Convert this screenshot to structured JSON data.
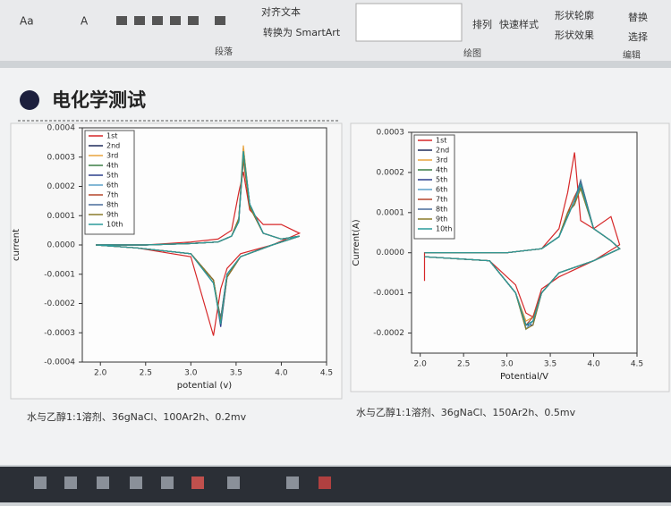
{
  "ribbon": {
    "font_size": "Aa",
    "font_color": "A",
    "align_text": "对齐文本",
    "convert_smartart": "转换为 SmartArt",
    "paragraph": "段落",
    "arrange": "排列",
    "quick_styles": "快速样式",
    "shape_outline": "形状轮廓",
    "shape_effects": "形状效果",
    "replace": "替换",
    "select": "选择",
    "drawing": "绘图",
    "editing": "编辑"
  },
  "slide": {
    "title": "电化学测试",
    "captions": [
      "水与乙醇1:1溶剂、36gNaCl、100Ar2h、0.2mv",
      "水与乙醇1:1溶剂、36gNaCl、150Ar2h、0.5mv"
    ]
  },
  "chart_data": [
    {
      "type": "line",
      "xlabel": "potential (v)",
      "ylabel": "current",
      "xlim": [
        1.8,
        4.5
      ],
      "ylim": [
        -0.0004,
        0.0004
      ],
      "xticks": [
        {
          "value": 2,
          "label": "2.0"
        },
        2.5,
        {
          "value": 3,
          "label": "3.0"
        },
        3.5,
        {
          "value": 4,
          "label": "4.0"
        },
        4.5
      ],
      "yticks": [
        -0.0004,
        -0.0003,
        -0.0002,
        -0.0001,
        {
          "value": 0,
          "label": "0.0000"
        },
        0.0001,
        0.0002,
        0.0003,
        0.0004
      ],
      "grid": false,
      "legend": "upper left",
      "x": [
        1.95,
        2.5,
        3.0,
        3.3,
        3.45,
        3.53,
        3.58,
        3.65,
        3.8,
        4.0,
        4.2,
        3.9,
        3.55,
        3.4,
        3.33,
        3.25,
        3.0,
        2.4,
        1.95
      ],
      "series": [
        {
          "name": "1st",
          "color": "#d62728",
          "values": [
            0,
            0,
            1e-05,
            2e-05,
            5e-05,
            0.00018,
            0.00025,
            0.00012,
            7e-05,
            7e-05,
            4e-05,
            0,
            -3e-05,
            -8e-05,
            -0.00015,
            -0.00031,
            -4e-05,
            -1e-05,
            0
          ]
        },
        {
          "name": "2nd",
          "color": "#1f2a5a",
          "values": [
            0,
            0,
            5e-06,
            1e-05,
            3e-05,
            8e-05,
            0.00033,
            0.00014,
            4e-05,
            2e-05,
            3e-05,
            0,
            -4e-05,
            -0.0001,
            -0.00026,
            -0.00012,
            -3e-05,
            -1e-05,
            0
          ]
        },
        {
          "name": "3rd",
          "color": "#e8a33d",
          "values": [
            0,
            0,
            5e-06,
            1e-05,
            3e-05,
            9e-05,
            0.00034,
            0.00013,
            4e-05,
            2e-05,
            3e-05,
            0,
            -4e-05,
            -0.00011,
            -0.00027,
            -0.00012,
            -3e-05,
            -1e-05,
            0
          ]
        },
        {
          "name": "4th",
          "color": "#3a7d44",
          "values": [
            0,
            0,
            5e-06,
            1e-05,
            3e-05,
            8e-05,
            0.00032,
            0.00014,
            4e-05,
            2e-05,
            3e-05,
            0,
            -4e-05,
            -0.0001,
            -0.00025,
            -0.00013,
            -3e-05,
            -1e-05,
            0
          ]
        },
        {
          "name": "5th",
          "color": "#2b3f8c",
          "values": [
            0,
            0,
            5e-06,
            1e-05,
            3e-05,
            9e-05,
            0.00031,
            0.00013,
            4e-05,
            2e-05,
            3e-05,
            0,
            -4e-05,
            -0.00011,
            -0.00028,
            -0.00012,
            -3e-05,
            -1e-05,
            0
          ]
        },
        {
          "name": "6th",
          "color": "#5aa0c8",
          "values": [
            0,
            0,
            5e-06,
            1e-05,
            3e-05,
            8e-05,
            0.0003,
            0.00014,
            4e-05,
            2e-05,
            3e-05,
            0,
            -4e-05,
            -0.0001,
            -0.00026,
            -0.00013,
            -3e-05,
            -1e-05,
            0
          ]
        },
        {
          "name": "7th",
          "color": "#b5452b",
          "values": [
            0,
            0,
            5e-06,
            1e-05,
            3e-05,
            9e-05,
            0.00029,
            0.00013,
            4e-05,
            2e-05,
            3e-05,
            0,
            -4e-05,
            -0.00011,
            -0.00027,
            -0.00012,
            -3e-05,
            -1e-05,
            0
          ]
        },
        {
          "name": "8th",
          "color": "#486a9a",
          "values": [
            0,
            0,
            5e-06,
            1e-05,
            3e-05,
            8e-05,
            0.00031,
            0.00014,
            4e-05,
            2e-05,
            3e-05,
            0,
            -4e-05,
            -0.0001,
            -0.00025,
            -0.00013,
            -3e-05,
            -1e-05,
            0
          ]
        },
        {
          "name": "9th",
          "color": "#8a7a2a",
          "values": [
            0,
            0,
            5e-06,
            1e-05,
            3e-05,
            9e-05,
            0.0003,
            0.00013,
            4e-05,
            2e-05,
            3e-05,
            0,
            -4e-05,
            -0.00011,
            -0.00026,
            -0.00012,
            -3e-05,
            -1e-05,
            0
          ]
        },
        {
          "name": "10th",
          "color": "#2a9a9a",
          "values": [
            0,
            0,
            5e-06,
            1e-05,
            3e-05,
            8e-05,
            0.00032,
            0.00014,
            4e-05,
            2e-05,
            3e-05,
            0,
            -4e-05,
            -0.0001,
            -0.00027,
            -0.00013,
            -3e-05,
            -1e-05,
            0
          ]
        }
      ]
    },
    {
      "type": "line",
      "xlabel": "Potential/V",
      "ylabel": "Current(A)",
      "xlim": [
        1.9,
        4.5
      ],
      "ylim": [
        -0.00025,
        0.0003
      ],
      "xticks": [
        {
          "value": 2,
          "label": "2.0"
        },
        2.5,
        {
          "value": 3,
          "label": "3.0"
        },
        3.5,
        {
          "value": 4,
          "label": "4.0"
        },
        4.5
      ],
      "yticks": [
        -0.0002,
        -0.0001,
        {
          "value": 0,
          "label": "0.0000"
        },
        0.0001,
        0.0002,
        0.0003
      ],
      "grid": false,
      "legend": "upper left",
      "x": [
        2.05,
        2.05,
        3.0,
        3.4,
        3.6,
        3.7,
        3.78,
        3.85,
        4.0,
        4.2,
        4.3,
        4.0,
        3.6,
        3.4,
        3.3,
        3.22,
        3.1,
        2.8,
        2.05
      ],
      "series": [
        {
          "name": "1st",
          "color": "#d62728",
          "values": [
            -7e-05,
            0,
            0,
            1e-05,
            6e-05,
            0.00015,
            0.00025,
            8e-05,
            6e-05,
            9e-05,
            2e-05,
            -2e-05,
            -6e-05,
            -9e-05,
            -0.00016,
            -0.00015,
            -8e-05,
            -2e-05,
            -1e-05
          ]
        },
        {
          "name": "2nd",
          "color": "#1f2a5a",
          "values": [
            0,
            0,
            0,
            1e-05,
            4e-05,
            9e-05,
            0.00013,
            0.00017,
            6e-05,
            3e-05,
            1e-05,
            -2e-05,
            -5e-05,
            -0.0001,
            -0.00017,
            -0.00018,
            -0.0001,
            -2e-05,
            -1e-05
          ]
        },
        {
          "name": "3rd",
          "color": "#e8a33d",
          "values": [
            0,
            0,
            0,
            1e-05,
            4e-05,
            0.0001,
            0.00014,
            0.00016,
            6e-05,
            3e-05,
            1e-05,
            -2e-05,
            -5e-05,
            -0.0001,
            -0.00016,
            -0.00017,
            -0.0001,
            -2e-05,
            -1e-05
          ]
        },
        {
          "name": "4th",
          "color": "#3a7d44",
          "values": [
            0,
            0,
            0,
            1e-05,
            4e-05,
            9e-05,
            0.00013,
            0.00018,
            6e-05,
            3e-05,
            1e-05,
            -2e-05,
            -5e-05,
            -0.0001,
            -0.00017,
            -0.00019,
            -0.0001,
            -2e-05,
            -1e-05
          ]
        },
        {
          "name": "5th",
          "color": "#2b3f8c",
          "values": [
            0,
            0,
            0,
            1e-05,
            4e-05,
            0.0001,
            0.00012,
            0.00017,
            6e-05,
            3e-05,
            1e-05,
            -2e-05,
            -5e-05,
            -0.0001,
            -0.00018,
            -0.00018,
            -0.0001,
            -2e-05,
            -1e-05
          ]
        },
        {
          "name": "6th",
          "color": "#5aa0c8",
          "values": [
            0,
            0,
            0,
            1e-05,
            4e-05,
            9e-05,
            0.00013,
            0.00016,
            6e-05,
            3e-05,
            1e-05,
            -2e-05,
            -5e-05,
            -0.0001,
            -0.00017,
            -0.00019,
            -0.0001,
            -2e-05,
            -1e-05
          ]
        },
        {
          "name": "7th",
          "color": "#b5452b",
          "values": [
            0,
            0,
            0,
            1e-05,
            4e-05,
            0.0001,
            0.00014,
            0.00017,
            6e-05,
            3e-05,
            1e-05,
            -2e-05,
            -5e-05,
            -0.0001,
            -0.00016,
            -0.00018,
            -0.0001,
            -2e-05,
            -1e-05
          ]
        },
        {
          "name": "8th",
          "color": "#486a9a",
          "values": [
            0,
            0,
            0,
            1e-05,
            4e-05,
            9e-05,
            0.00013,
            0.00018,
            6e-05,
            3e-05,
            1e-05,
            -2e-05,
            -5e-05,
            -0.0001,
            -0.00017,
            -0.00018,
            -0.0001,
            -2e-05,
            -1e-05
          ]
        },
        {
          "name": "9th",
          "color": "#8a7a2a",
          "values": [
            0,
            0,
            0,
            1e-05,
            4e-05,
            0.0001,
            0.00012,
            0.00016,
            6e-05,
            3e-05,
            1e-05,
            -2e-05,
            -5e-05,
            -0.0001,
            -0.00018,
            -0.00019,
            -0.0001,
            -2e-05,
            -1e-05
          ]
        },
        {
          "name": "10th",
          "color": "#2a9a9a",
          "values": [
            0,
            0,
            0,
            1e-05,
            4e-05,
            9e-05,
            0.00013,
            0.00017,
            6e-05,
            3e-05,
            1e-05,
            -2e-05,
            -5e-05,
            -0.0001,
            -0.00017,
            -0.00018,
            -0.0001,
            -2e-05,
            -1e-05
          ]
        }
      ]
    }
  ]
}
